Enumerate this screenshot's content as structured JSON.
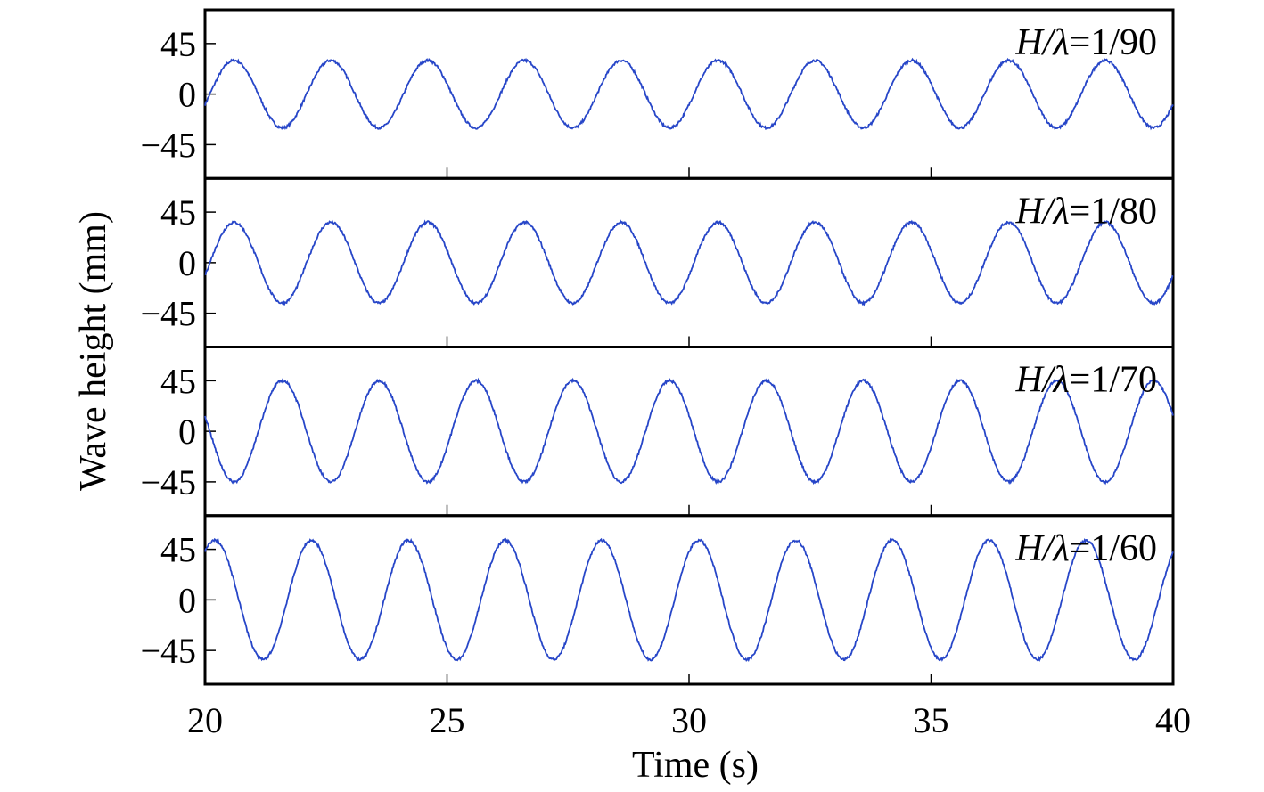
{
  "chart_data": {
    "type": "line",
    "xlabel": "Time (s)",
    "ylabel": "Wave height (mm)",
    "xlim": [
      20,
      40
    ],
    "ylim": [
      -75,
      75
    ],
    "x_ticks": [
      20,
      25,
      30,
      35,
      40
    ],
    "x_tick_labels": [
      "20",
      "25",
      "30",
      "35",
      "40"
    ],
    "y_ticks": [
      45,
      0,
      -45
    ],
    "y_tick_labels": [
      "45",
      "0",
      "−45"
    ],
    "grid": false,
    "line_color": "#2746c8",
    "panels": [
      {
        "label_italic": "H/λ",
        "label_rest": "=1/90",
        "amplitude": 30,
        "period": 2.0,
        "phase_peak_time": 20.6
      },
      {
        "label_italic": "H/λ",
        "label_rest": "=1/80",
        "amplitude": 36,
        "period": 2.0,
        "phase_peak_time": 20.6
      },
      {
        "label_italic": "H/λ",
        "label_rest": "=1/70",
        "amplitude": 45,
        "period": 2.0,
        "phase_peak_time": 21.6
      },
      {
        "label_italic": "H/λ",
        "label_rest": "=1/60",
        "amplitude": 53,
        "period": 2.0,
        "phase_peak_time": 20.2
      }
    ]
  }
}
